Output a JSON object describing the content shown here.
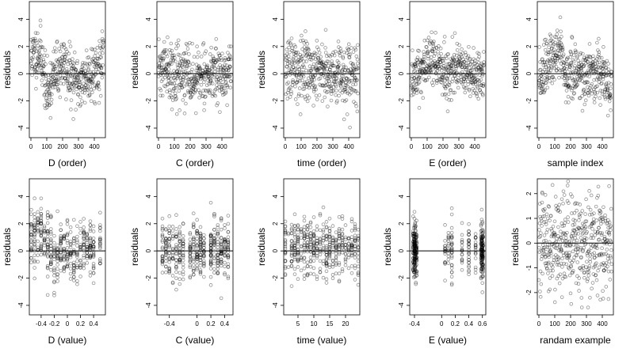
{
  "chart_data": [
    {
      "id": "p1",
      "type": "scatter",
      "xlabel": "D (order)",
      "ylabel": "residuals",
      "xlim": [
        -10,
        470
      ],
      "ylim": [
        -4.7,
        5.3
      ],
      "xticks": [
        0,
        100,
        200,
        300,
        400
      ],
      "yticks": [
        -4,
        -2,
        0,
        2,
        4
      ],
      "hline": 0,
      "data": {
        "kind": "seq",
        "n": 460,
        "seed": 11,
        "base": [
          [
            0,
            1.2
          ],
          [
            60,
            1.6
          ],
          [
            75,
            0.6
          ],
          [
            100,
            -1.5
          ],
          [
            140,
            -0.3
          ],
          [
            200,
            0.8
          ],
          [
            230,
            0.2
          ],
          [
            260,
            -0.5
          ],
          [
            320,
            -0.6
          ],
          [
            360,
            0.0
          ],
          [
            400,
            0.2
          ],
          [
            460,
            0.9
          ]
        ],
        "noise": 1.0,
        "lo": -4.5,
        "hi": 5.0
      }
    },
    {
      "id": "p2",
      "type": "scatter",
      "xlabel": "C (order)",
      "ylabel": "residuals",
      "xlim": [
        -10,
        470
      ],
      "ylim": [
        -4.7,
        5.3
      ],
      "xticks": [
        0,
        100,
        200,
        300,
        400
      ],
      "yticks": [
        -4,
        -2,
        0,
        2,
        4
      ],
      "hline": 0,
      "data": {
        "kind": "seq",
        "n": 460,
        "seed": 22,
        "base": [
          [
            0,
            0.3
          ],
          [
            200,
            -0.2
          ],
          [
            460,
            0.1
          ]
        ],
        "noise": 1.0,
        "lo": -4.5,
        "hi": 5.0
      }
    },
    {
      "id": "p3",
      "type": "scatter",
      "xlabel": "time (order)",
      "ylabel": "residuals",
      "xlim": [
        -10,
        470
      ],
      "ylim": [
        -4.7,
        5.3
      ],
      "xticks": [
        0,
        100,
        200,
        300,
        400
      ],
      "yticks": [
        -4,
        -2,
        0,
        2,
        4
      ],
      "hline": 0,
      "data": {
        "kind": "seq",
        "n": 460,
        "seed": 33,
        "base": [
          [
            0,
            0.2
          ],
          [
            200,
            0.3
          ],
          [
            460,
            -0.1
          ]
        ],
        "noise": 1.1,
        "lo": -4.5,
        "hi": 5.0
      }
    },
    {
      "id": "p4",
      "type": "scatter",
      "xlabel": "E (order)",
      "ylabel": "residuals",
      "xlim": [
        -10,
        470
      ],
      "ylim": [
        -4.7,
        5.3
      ],
      "xticks": [
        0,
        100,
        200,
        300,
        400
      ],
      "yticks": [
        -4,
        -2,
        0,
        2,
        4
      ],
      "hline": 0,
      "data": {
        "kind": "seq",
        "n": 460,
        "seed": 44,
        "base": [
          [
            0,
            -0.8
          ],
          [
            60,
            0.2
          ],
          [
            100,
            1.0
          ],
          [
            160,
            0.8
          ],
          [
            220,
            0.2
          ],
          [
            300,
            0.5
          ],
          [
            380,
            -0.2
          ],
          [
            460,
            0.0
          ]
        ],
        "noise": 1.0,
        "lo": -4.5,
        "hi": 5.0
      }
    },
    {
      "id": "p5",
      "type": "scatter",
      "xlabel": "sample index",
      "ylabel": "residuals",
      "xlim": [
        -10,
        470
      ],
      "ylim": [
        -4.7,
        5.3
      ],
      "xticks": [
        0,
        100,
        200,
        300,
        400
      ],
      "yticks": [
        -4,
        -2,
        0,
        2,
        4
      ],
      "hline": 0,
      "data": {
        "kind": "seq",
        "n": 460,
        "seed": 55,
        "base": [
          [
            0,
            -0.5
          ],
          [
            80,
            1.0
          ],
          [
            140,
            1.6
          ],
          [
            170,
            -0.8
          ],
          [
            200,
            0.3
          ],
          [
            260,
            0.0
          ],
          [
            320,
            -0.3
          ],
          [
            380,
            0.4
          ],
          [
            430,
            -0.6
          ],
          [
            460,
            -0.6
          ]
        ],
        "noise": 1.0,
        "lo": -4.5,
        "hi": 5.0
      }
    },
    {
      "id": "p6",
      "type": "scatter",
      "xlabel": "D (value)",
      "ylabel": "residuals",
      "xlim": [
        -0.58,
        0.58
      ],
      "ylim": [
        -4.7,
        5.3
      ],
      "xticks": [
        -0.4,
        -0.2,
        0.0,
        0.2,
        0.4
      ],
      "ytickLabels": true,
      "yticks": [
        -4,
        -2,
        0,
        2,
        4
      ],
      "hline": 0,
      "data": {
        "kind": "vals",
        "n": 460,
        "seed": 66,
        "xs": [
          -0.55,
          -0.5,
          -0.45,
          -0.4,
          -0.35,
          -0.3,
          -0.25,
          -0.2,
          -0.15,
          -0.1,
          -0.05,
          0.0,
          0.05,
          0.1,
          0.15,
          0.2,
          0.25,
          0.3,
          0.35,
          0.4,
          0.5
        ],
        "base": [
          [
            -0.55,
            0.8
          ],
          [
            -0.4,
            1.2
          ],
          [
            -0.3,
            0.3
          ],
          [
            -0.2,
            -0.4
          ],
          [
            0.0,
            0.2
          ],
          [
            0.1,
            -0.6
          ],
          [
            0.2,
            0.0
          ],
          [
            0.5,
            0.4
          ]
        ],
        "noise": 1.1,
        "lo": -4.5,
        "hi": 5.0
      }
    },
    {
      "id": "p7",
      "type": "scatter",
      "xlabel": "C (value)",
      "ylabel": "residuals",
      "xlim": [
        -0.58,
        0.52
      ],
      "ylim": [
        -4.7,
        5.3
      ],
      "xticks": [
        -0.4,
        0.0,
        0.2,
        0.4
      ],
      "yticks": [
        -4,
        -2,
        0,
        2,
        4
      ],
      "hline": 0,
      "data": {
        "kind": "vals",
        "n": 460,
        "seed": 77,
        "xs": [
          -0.5,
          -0.45,
          -0.4,
          -0.35,
          -0.3,
          -0.25,
          -0.2,
          -0.1,
          -0.05,
          0.0,
          0.05,
          0.1,
          0.2,
          0.25,
          0.3,
          0.35,
          0.4,
          0.45
        ],
        "base": [
          [
            -0.5,
            0.0
          ],
          [
            0.45,
            0.1
          ]
        ],
        "noise": 1.1,
        "lo": -4.5,
        "hi": 5.0
      }
    },
    {
      "id": "p8",
      "type": "scatter",
      "xlabel": "time (value)",
      "ylabel": "residuals",
      "xlim": [
        0.5,
        24.5
      ],
      "ylim": [
        -4.7,
        5.3
      ],
      "xticks": [
        5,
        10,
        15,
        20
      ],
      "yticks": [
        -4,
        -2,
        0,
        2,
        4
      ],
      "hline": 0,
      "data": {
        "kind": "vals",
        "n": 460,
        "seed": 88,
        "xs": [
          1,
          2,
          3,
          4,
          5,
          6,
          7,
          8,
          9,
          10,
          11,
          12,
          13,
          14,
          15,
          16,
          17,
          18,
          19,
          20,
          21,
          22,
          23,
          24
        ],
        "base": [
          [
            1,
            0.3
          ],
          [
            24,
            0.2
          ]
        ],
        "noise": 1.1,
        "lo": -4.5,
        "hi": 5.0
      }
    },
    {
      "id": "p9",
      "type": "scatter",
      "xlabel": "E (value)",
      "ylabel": "residuals",
      "xlim": [
        -0.47,
        0.65
      ],
      "ylim": [
        -4.7,
        5.3
      ],
      "xticks": [
        -0.4,
        0.0,
        0.2,
        0.4,
        0.6
      ],
      "yticks": [
        -4,
        -2,
        0,
        2,
        4
      ],
      "hline": 0,
      "data": {
        "kind": "vals",
        "n": 460,
        "seed": 99,
        "xs": [
          -0.42,
          -0.41,
          -0.4,
          -0.39,
          -0.38,
          -0.37,
          -0.4,
          -0.39,
          0.05,
          0.1,
          0.15,
          0.3,
          0.4,
          0.5,
          0.58,
          0.59,
          0.6,
          0.6,
          0.61,
          0.59
        ],
        "base": [
          [
            -0.45,
            0.0
          ],
          [
            0.6,
            0.0
          ]
        ],
        "noise": 1.0,
        "lo": -4.5,
        "hi": 5.0
      }
    },
    {
      "id": "p10",
      "type": "scatter",
      "xlabel": "randam example",
      "ylabel": "residuals",
      "xlim": [
        -10,
        470
      ],
      "ylim": [
        -2.9,
        2.6
      ],
      "xticks": [
        0,
        100,
        200,
        300,
        400
      ],
      "yticks": [
        -2,
        -1,
        0,
        1,
        2
      ],
      "hline": 0,
      "data": {
        "kind": "seq",
        "n": 460,
        "seed": 101,
        "base": [
          [
            0,
            0
          ],
          [
            460,
            0
          ]
        ],
        "noise": 1.0,
        "lo": -2.6,
        "hi": 2.5
      }
    }
  ]
}
